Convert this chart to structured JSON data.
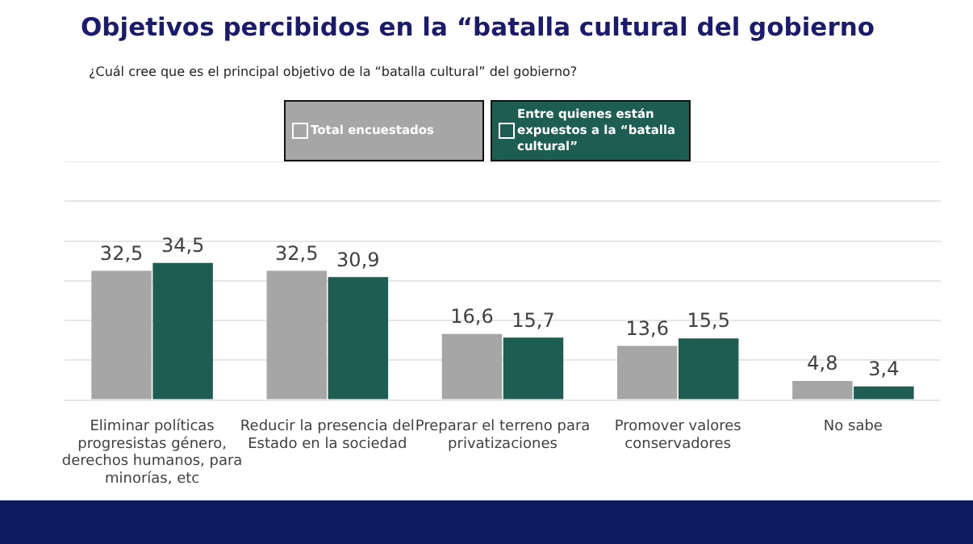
{
  "chart_data": {
    "type": "bar",
    "title": "Objetivos percibidos en la “batalla cultural del gobierno",
    "subtitle": "¿Cuál cree que es el principal objetivo de la “batalla cultural” del gobierno?",
    "categories": [
      "Eliminar políticas progresistas género, derechos humanos, para minorías, etc",
      "Reducir la presencia del Estado en la sociedad",
      "Preparar el terreno para privatizaciones",
      "Promover valores conservadores",
      "No sabe"
    ],
    "series": [
      {
        "name": "Total encuestados",
        "color": "#a6a6a6",
        "values": [
          32.5,
          32.5,
          16.6,
          13.6,
          4.8
        ],
        "value_labels": [
          "32,5",
          "32,5",
          "16,6",
          "13,6",
          "4,8"
        ]
      },
      {
        "name": "Entre quienes están expuestos a la “batalla cultural”",
        "color": "#1e5e52",
        "values": [
          34.5,
          30.9,
          15.7,
          15.5,
          3.4
        ],
        "value_labels": [
          "34,5",
          "30,9",
          "15,7",
          "15,5",
          "3,4"
        ]
      }
    ],
    "tick_labels": "x",
    "grid": "y",
    "legend": "top"
  }
}
